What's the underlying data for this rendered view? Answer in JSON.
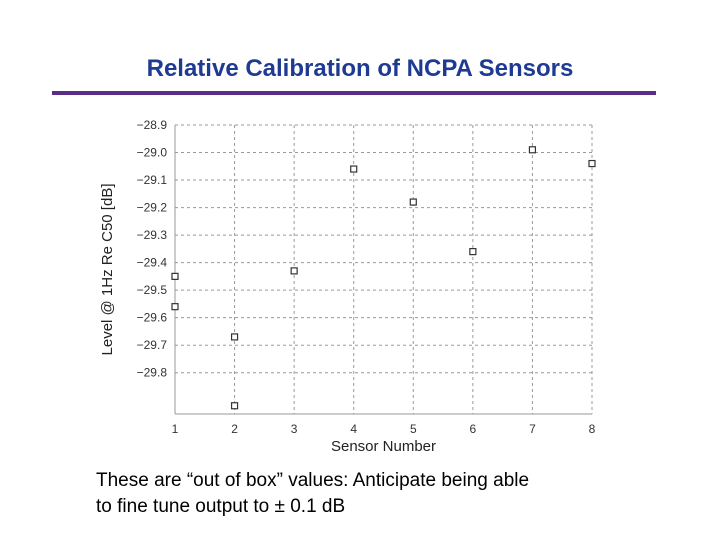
{
  "slide": {
    "title": "Relative Calibration of NCPA Sensors",
    "caption_lines": [
      "These are “out of box” values: Anticipate being able",
      "to fine tune output to ± 0.1 dB"
    ],
    "title_color": "#1f3a93",
    "rule_color": "#5b2d86"
  },
  "chart_data": {
    "type": "scatter",
    "title": "",
    "xlabel": "Sensor Number",
    "ylabel": "Level @ 1Hz Re C50 [dB]",
    "xlim": [
      1,
      8
    ],
    "ylim": [
      -29.95,
      -28.9
    ],
    "x_ticks": [
      1,
      2,
      3,
      4,
      5,
      6,
      7,
      8
    ],
    "y_ticks": [
      -28.9,
      -29.0,
      -29.1,
      -29.2,
      -29.3,
      -29.4,
      -29.5,
      -29.6,
      -29.7,
      -29.8
    ],
    "y_tick_labels": [
      "−28.9",
      "−29.0",
      "−29.1",
      "−29.2",
      "−29.3",
      "−29.4",
      "−29.5",
      "−29.6",
      "−29.7",
      "−29.8"
    ],
    "grid": true,
    "marker": "open-square",
    "points": [
      {
        "x": 1,
        "y": -29.45
      },
      {
        "x": 1,
        "y": -29.56
      },
      {
        "x": 2,
        "y": -29.67
      },
      {
        "x": 2,
        "y": -29.92
      },
      {
        "x": 3,
        "y": -29.43
      },
      {
        "x": 4,
        "y": -29.06
      },
      {
        "x": 5,
        "y": -29.18
      },
      {
        "x": 6,
        "y": -29.36
      },
      {
        "x": 7,
        "y": -28.99
      },
      {
        "x": 8,
        "y": -29.04
      }
    ]
  }
}
